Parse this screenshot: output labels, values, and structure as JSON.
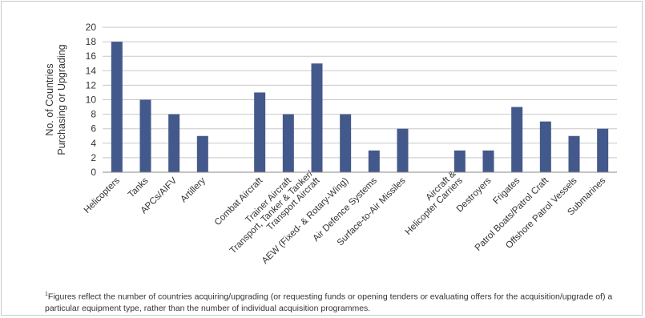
{
  "colors": {
    "bar": "#44598b",
    "grid": "#c8c8c8",
    "axis": "#888888",
    "text": "#333333"
  },
  "chart_data": {
    "type": "bar",
    "ylabel": [
      "No. of Countries",
      "Purchasing or Upgrading"
    ],
    "ylim": [
      0,
      20
    ],
    "yticks": [
      0,
      2,
      4,
      6,
      8,
      10,
      12,
      14,
      16,
      18,
      20
    ],
    "grid": true,
    "groups": [
      {
        "categories": [
          {
            "label": [
              "Helicopters"
            ],
            "value": 18
          },
          {
            "label": [
              "Tanks"
            ],
            "value": 10
          },
          {
            "label": [
              "APCs/AIFV"
            ],
            "value": 8
          },
          {
            "label": [
              "Artillery"
            ],
            "value": 5
          }
        ]
      },
      {
        "categories": [
          {
            "label": [
              "Combat Aircraft"
            ],
            "value": 11
          },
          {
            "label": [
              "Trainer Aircraft"
            ],
            "value": 8
          },
          {
            "label": [
              "Transport, Tanker & Tanker/",
              "Transport Aircraft"
            ],
            "value": 15
          },
          {
            "label": [
              "AEW (Fixed- & Rotary-Wing)"
            ],
            "value": 8
          },
          {
            "label": [
              "Air Defence Systems"
            ],
            "value": 3
          },
          {
            "label": [
              "Surface-to-Air Missiles"
            ],
            "value": 6
          }
        ]
      },
      {
        "categories": [
          {
            "label": [
              "Aircraft &",
              "Helicopter Carriers"
            ],
            "value": 3
          },
          {
            "label": [
              "Destroyers"
            ],
            "value": 3
          },
          {
            "label": [
              "Frigates"
            ],
            "value": 9
          },
          {
            "label": [
              "Patrol Boats/Patrol Craft"
            ],
            "value": 7
          },
          {
            "label": [
              "Offshore Patrol Vessels"
            ],
            "value": 5
          },
          {
            "label": [
              "Submarines"
            ],
            "value": 6
          }
        ]
      }
    ]
  },
  "footnote": {
    "marker": "1",
    "text": "Figures reflect the number of countries acquiring/upgrading (or requesting funds or opening tenders or evaluating offers for the acquisition/upgrade of) a particular equipment type, rather than the number of individual acquisition programmes."
  }
}
